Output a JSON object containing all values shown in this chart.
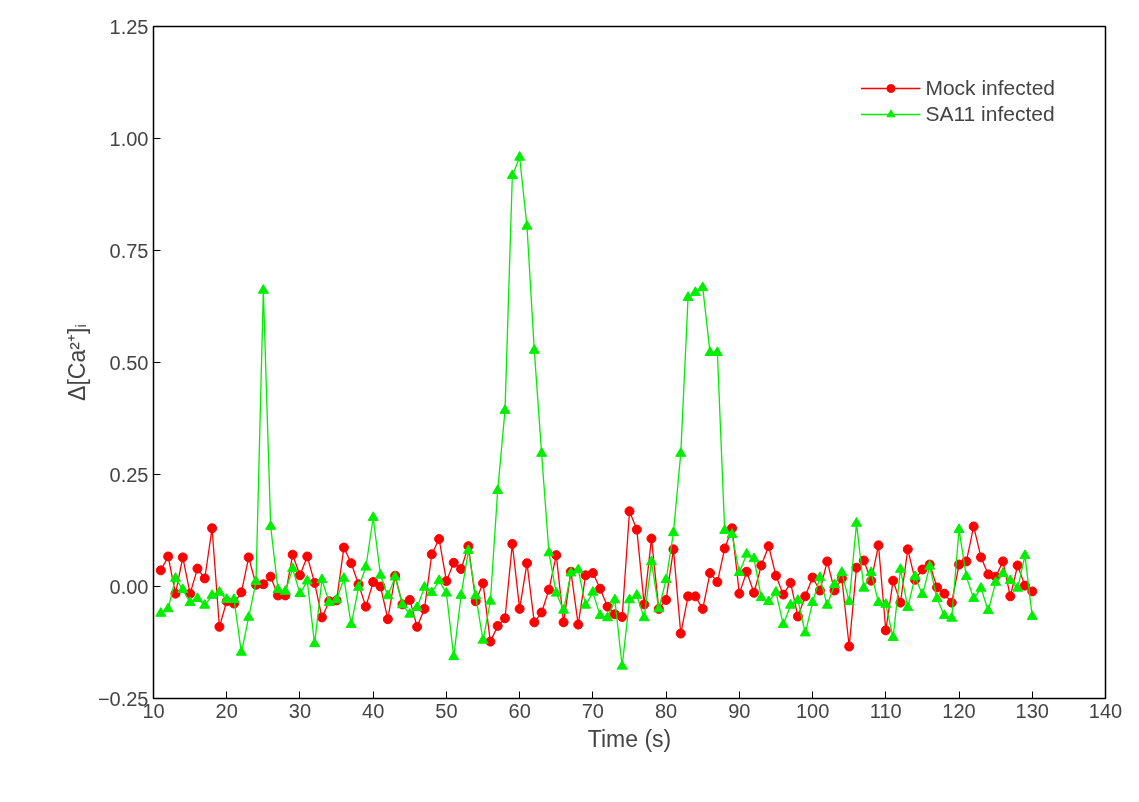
{
  "chart_data": {
    "type": "line",
    "xlabel": "Time (s)",
    "ylabel": "Δ[Ca²⁺]ᵢ",
    "x": [
      11,
      12,
      13,
      14,
      15,
      16,
      17,
      18,
      19,
      20,
      21,
      22,
      23,
      24,
      25,
      26,
      27,
      28,
      29,
      30,
      31,
      32,
      33,
      34,
      35,
      36,
      37,
      38,
      39,
      40,
      41,
      42,
      43,
      44,
      45,
      46,
      47,
      48,
      49,
      50,
      51,
      52,
      53,
      54,
      55,
      56,
      57,
      58,
      59,
      60,
      61,
      62,
      63,
      64,
      65,
      66,
      67,
      68,
      69,
      70,
      71,
      72,
      73,
      74,
      75,
      76,
      77,
      78,
      79,
      80,
      81,
      82,
      83,
      84,
      85,
      86,
      87,
      88,
      89,
      90,
      91,
      92,
      93,
      94,
      95,
      96,
      97,
      98,
      99,
      100,
      101,
      102,
      103,
      104,
      105,
      106,
      107,
      108,
      109,
      110,
      111,
      112,
      113,
      114,
      115,
      116,
      117,
      118,
      119,
      120,
      121,
      122,
      123,
      124,
      125,
      126,
      127,
      128,
      129,
      130
    ],
    "series": [
      {
        "name": "Mock infected",
        "color": "#ff0000",
        "marker": "circle",
        "values": [
          0.036,
          0.067,
          -0.016,
          0.065,
          -0.016,
          0.04,
          0.018,
          0.13,
          -0.09,
          -0.033,
          -0.038,
          -0.013,
          0.065,
          0.004,
          0.005,
          0.022,
          -0.02,
          -0.02,
          0.071,
          0.025,
          0.067,
          0.008,
          -0.069,
          -0.033,
          -0.031,
          0.087,
          0.052,
          0.005,
          -0.045,
          0.01,
          0.0,
          -0.073,
          0.024,
          -0.04,
          -0.03,
          -0.09,
          -0.05,
          0.072,
          0.106,
          0.012,
          0.053,
          0.039,
          0.09,
          -0.033,
          0.007,
          -0.123,
          -0.088,
          -0.071,
          0.095,
          -0.05,
          0.052,
          -0.08,
          -0.058,
          -0.007,
          0.07,
          -0.08,
          0.033,
          -0.085,
          0.025,
          0.03,
          -0.005,
          -0.045,
          -0.062,
          -0.068,
          0.168,
          0.127,
          -0.04,
          0.107,
          -0.05,
          -0.03,
          0.083,
          -0.105,
          -0.022,
          -0.022,
          -0.05,
          0.03,
          0.01,
          0.085,
          0.13,
          -0.016,
          0.033,
          -0.014,
          0.047,
          0.09,
          0.024,
          -0.018,
          0.008,
          -0.067,
          -0.022,
          0.02,
          -0.009,
          0.056,
          -0.009,
          0.018,
          -0.134,
          0.042,
          0.058,
          0.013,
          0.092,
          -0.098,
          0.013,
          -0.036,
          0.083,
          0.015,
          0.038,
          0.049,
          -0.002,
          -0.016,
          -0.036,
          0.049,
          0.056,
          0.134,
          0.065,
          0.027,
          0.022,
          0.056,
          -0.022,
          0.047,
          0.002,
          -0.011
        ]
      },
      {
        "name": "SA11 infected",
        "color": "#00ee00",
        "marker": "triangle",
        "values": [
          -0.06,
          -0.05,
          0.018,
          -0.007,
          -0.036,
          -0.027,
          -0.042,
          -0.02,
          -0.013,
          -0.029,
          -0.029,
          -0.147,
          -0.069,
          0.011,
          0.661,
          0.134,
          -0.007,
          -0.011,
          0.04,
          -0.016,
          0.012,
          -0.128,
          0.015,
          -0.036,
          -0.03,
          0.018,
          -0.085,
          -0.002,
          0.043,
          0.154,
          0.025,
          -0.021,
          0.021,
          -0.041,
          -0.062,
          -0.047,
          -0.002,
          -0.014,
          0.013,
          -0.015,
          -0.157,
          -0.02,
          0.08,
          -0.021,
          -0.12,
          -0.033,
          0.214,
          0.393,
          0.917,
          0.958,
          0.804,
          0.527,
          0.297,
          0.075,
          -0.015,
          -0.053,
          0.03,
          0.037,
          -0.042,
          -0.013,
          -0.065,
          -0.07,
          -0.03,
          -0.178,
          -0.03,
          -0.02,
          -0.07,
          0.055,
          -0.05,
          0.015,
          0.12,
          0.297,
          0.645,
          0.656,
          0.667,
          0.522,
          0.522,
          0.125,
          0.116,
          0.031,
          0.072,
          0.062,
          -0.025,
          -0.034,
          -0.013,
          -0.085,
          -0.042,
          -0.031,
          -0.104,
          -0.036,
          0.02,
          -0.042,
          0.004,
          0.031,
          -0.034,
          0.141,
          -0.004,
          0.031,
          -0.036,
          -0.04,
          -0.114,
          0.038,
          -0.047,
          0.022,
          -0.018,
          0.045,
          -0.027,
          -0.065,
          -0.071,
          0.127,
          0.022,
          -0.027,
          -0.004,
          -0.054,
          0.009,
          0.029,
          0.013,
          -0.004,
          0.069,
          -0.067
        ]
      }
    ],
    "xlim": [
      10,
      140
    ],
    "xticks": [
      10,
      20,
      30,
      40,
      50,
      60,
      70,
      80,
      90,
      100,
      110,
      120,
      130,
      140
    ],
    "ylim": [
      -0.25,
      1.25
    ],
    "yticks": [
      -0.25,
      {
        "value": 0,
        "label": "0.00"
      },
      0.25,
      {
        "value": 0.5,
        "label": "0.50"
      },
      0.75,
      {
        "value": 1,
        "label": "1.00"
      },
      1.25
    ],
    "grid": false,
    "legend": "top right",
    "line_style": "solid"
  }
}
